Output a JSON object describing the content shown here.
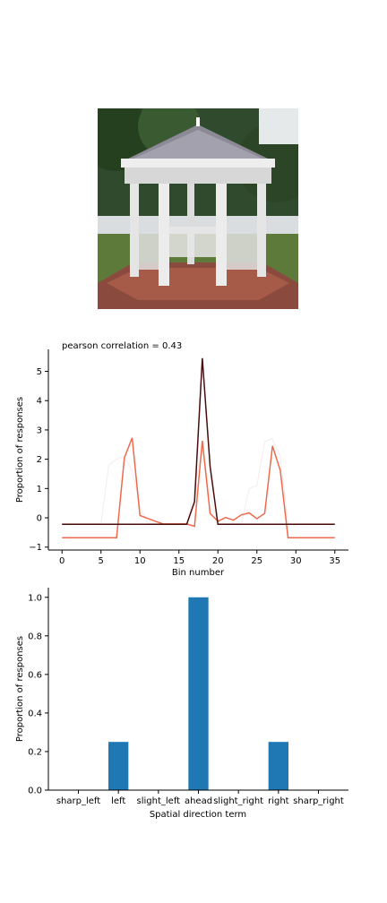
{
  "photo": {
    "subject": "white ornate gazebo with grey roof among trees"
  },
  "chart_data": [
    {
      "type": "line",
      "title": "pearson correlation = 0.43",
      "xlabel": "Bin number",
      "ylabel": "Proportion of responses",
      "xlim": [
        -1.75,
        36.75
      ],
      "ylim": [
        -1.1,
        5.75
      ],
      "xticks": [
        0,
        5,
        10,
        15,
        20,
        25,
        30,
        35
      ],
      "yticks": [
        -1,
        0,
        1,
        2,
        3,
        4,
        5
      ],
      "grid": false,
      "series": [
        {
          "color": "#f4ecec",
          "x": [
            0,
            1,
            2,
            3,
            4,
            5,
            6,
            7,
            8,
            9,
            10,
            11,
            12,
            13,
            14,
            15,
            16,
            17,
            18,
            19,
            20,
            21,
            22,
            23,
            24,
            25,
            26,
            27,
            28,
            29,
            30,
            31,
            32,
            33,
            34,
            35
          ],
          "values": [
            -0.2,
            -0.2,
            -0.2,
            -0.2,
            -0.2,
            -0.2,
            1.8,
            2.0,
            2.1,
            1.6,
            0.4,
            -0.2,
            -0.2,
            -0.2,
            -0.2,
            -0.2,
            -0.2,
            1.0,
            2.4,
            0.8,
            -0.2,
            -0.2,
            -0.2,
            -0.2,
            1.0,
            1.1,
            2.6,
            2.7,
            2.1,
            -0.2,
            -0.2,
            -0.2,
            -0.2,
            -0.2,
            -0.2,
            -0.2
          ]
        },
        {
          "color": "#ee6a4d",
          "x": [
            0,
            1,
            2,
            3,
            4,
            5,
            6,
            7,
            8,
            9,
            10,
            11,
            12,
            13,
            14,
            15,
            16,
            17,
            18,
            19,
            20,
            21,
            22,
            23,
            24,
            25,
            26,
            27,
            28,
            29,
            30,
            31,
            32,
            33,
            34,
            35
          ],
          "values": [
            -0.68,
            -0.68,
            -0.68,
            -0.68,
            -0.68,
            -0.68,
            -0.68,
            -0.68,
            2.05,
            2.73,
            0.08,
            -0.02,
            -0.12,
            -0.21,
            -0.21,
            -0.21,
            -0.21,
            -0.29,
            2.63,
            0.15,
            -0.12,
            0.01,
            -0.08,
            0.1,
            0.17,
            -0.03,
            0.15,
            2.45,
            1.62,
            -0.68,
            -0.68,
            -0.68,
            -0.68,
            -0.68,
            -0.68,
            -0.68
          ]
        },
        {
          "color": "#4a0d0d",
          "x": [
            0,
            1,
            2,
            3,
            4,
            5,
            6,
            7,
            8,
            9,
            10,
            11,
            12,
            13,
            14,
            15,
            16,
            17,
            18,
            19,
            20,
            21,
            22,
            23,
            24,
            25,
            26,
            27,
            28,
            29,
            30,
            31,
            32,
            33,
            34,
            35
          ],
          "values": [
            -0.22,
            -0.22,
            -0.22,
            -0.22,
            -0.22,
            -0.22,
            -0.22,
            -0.22,
            -0.22,
            -0.22,
            -0.22,
            -0.22,
            -0.22,
            -0.22,
            -0.22,
            -0.22,
            -0.22,
            0.55,
            5.45,
            1.75,
            -0.22,
            -0.22,
            -0.22,
            -0.22,
            -0.22,
            -0.22,
            -0.22,
            -0.22,
            -0.22,
            -0.22,
            -0.22,
            -0.22,
            -0.22,
            -0.22,
            -0.22,
            -0.22
          ]
        }
      ]
    },
    {
      "type": "bar",
      "xlabel": "Spatial direction term",
      "ylabel": "Proportion of responses",
      "categories": [
        "sharp_left",
        "left",
        "slight_left",
        "ahead",
        "slight_right",
        "right",
        "sharp_right"
      ],
      "values": [
        0,
        0.25,
        0,
        1.0,
        0,
        0.25,
        0
      ],
      "ylim": [
        0,
        1.05
      ],
      "yticks": [
        0.0,
        0.2,
        0.4,
        0.6,
        0.8,
        1.0
      ],
      "ytick_labels": [
        "0.0",
        "0.2",
        "0.4",
        "0.6",
        "0.8",
        "1.0"
      ],
      "bar_color": "#1f77b4",
      "grid": false
    }
  ]
}
